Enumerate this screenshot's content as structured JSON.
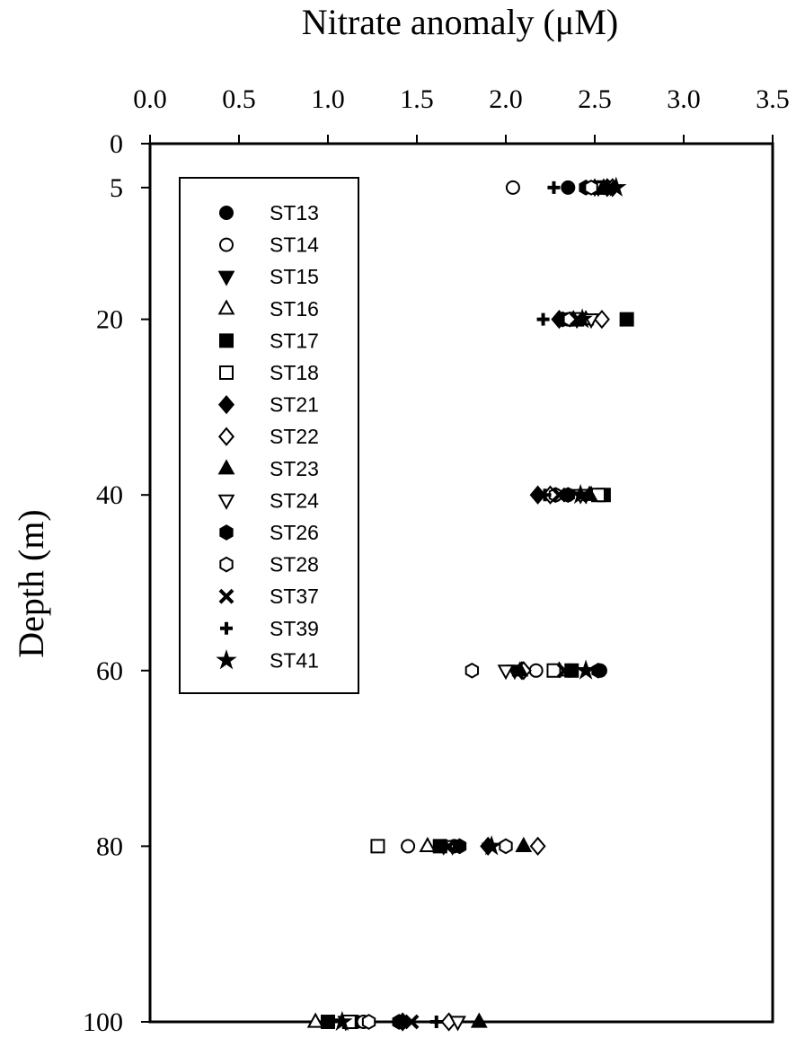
{
  "chart_data": {
    "type": "scatter",
    "title": "Nitrate anomaly (μM)",
    "y_label": "Depth (m)",
    "xlim": [
      0,
      3.5
    ],
    "xticks": [
      {
        "value": 0,
        "label": "0.0"
      },
      {
        "value": 0.5,
        "label": "0.5"
      },
      {
        "value": 1,
        "label": "1.0"
      },
      {
        "value": 1.5,
        "label": "1.5"
      },
      {
        "value": 2,
        "label": "2.0"
      },
      {
        "value": 2.5,
        "label": "2.5"
      },
      {
        "value": 3,
        "label": "3.0"
      },
      {
        "value": 3.5,
        "label": "3.5"
      }
    ],
    "ylim": [
      0,
      100
    ],
    "y_inverted": true,
    "yticks": [
      0,
      5,
      20,
      40,
      60,
      80,
      100
    ],
    "x_axis_position": "top",
    "grid": false,
    "legend": "upper left",
    "series": [
      {
        "name": "ST13",
        "color": "#000000",
        "marker": "circle",
        "filled": true,
        "x": [
          2.35,
          2.32,
          2.35,
          2.53,
          1.71,
          1.16
        ],
        "y": [
          5,
          20,
          40,
          60,
          80,
          100
        ]
      },
      {
        "name": "ST14",
        "color": "#000000",
        "marker": "circle",
        "filled": false,
        "x": [
          2.04,
          2.35,
          2.28,
          2.17,
          1.45,
          1.2
        ],
        "y": [
          5,
          20,
          40,
          60,
          80,
          100
        ]
      },
      {
        "name": "ST15",
        "color": "#000000",
        "marker": "triangle-down",
        "filled": true,
        "x": [
          2.52,
          2.4,
          2.45,
          2.05,
          1.65,
          1.1
        ],
        "y": [
          5,
          20,
          40,
          60,
          80,
          100
        ]
      },
      {
        "name": "ST16",
        "color": "#000000",
        "marker": "triangle-up",
        "filled": false,
        "x": [
          2.5,
          2.45,
          2.48,
          2.3,
          1.56,
          0.93
        ],
        "y": [
          5,
          20,
          40,
          60,
          80,
          100
        ]
      },
      {
        "name": "ST17",
        "color": "#000000",
        "marker": "square",
        "filled": true,
        "x": [
          2.55,
          2.68,
          2.55,
          2.37,
          1.63,
          1.0
        ],
        "y": [
          5,
          20,
          40,
          60,
          80,
          100
        ]
      },
      {
        "name": "ST18",
        "color": "#000000",
        "marker": "square",
        "filled": false,
        "x": [
          2.53,
          2.4,
          2.52,
          2.27,
          1.28,
          1.12
        ],
        "y": [
          5,
          20,
          40,
          60,
          80,
          100
        ]
      },
      {
        "name": "ST21",
        "color": "#000000",
        "marker": "diamond",
        "filled": true,
        "x": [
          2.57,
          2.3,
          2.18,
          2.09,
          1.9,
          1.42
        ],
        "y": [
          5,
          20,
          40,
          60,
          80,
          100
        ]
      },
      {
        "name": "ST22",
        "color": "#000000",
        "marker": "diamond",
        "filled": false,
        "x": [
          2.6,
          2.54,
          2.25,
          2.1,
          2.18,
          1.68
        ],
        "y": [
          5,
          20,
          40,
          60,
          80,
          100
        ]
      },
      {
        "name": "ST23",
        "color": "#000000",
        "marker": "triangle-up",
        "filled": true,
        "x": [
          2.55,
          2.38,
          2.47,
          2.08,
          2.1,
          1.85
        ],
        "y": [
          5,
          20,
          40,
          60,
          80,
          100
        ]
      },
      {
        "name": "ST24",
        "color": "#000000",
        "marker": "triangle-down",
        "filled": false,
        "x": [
          2.5,
          2.48,
          2.42,
          2.0,
          1.7,
          1.73
        ],
        "y": [
          5,
          20,
          40,
          60,
          80,
          100
        ]
      },
      {
        "name": "ST26",
        "color": "#000000",
        "marker": "hexagon",
        "filled": true,
        "x": [
          2.45,
          2.32,
          2.35,
          2.52,
          1.74,
          1.4
        ],
        "y": [
          5,
          20,
          40,
          60,
          80,
          100
        ]
      },
      {
        "name": "ST28",
        "color": "#000000",
        "marker": "hexagon",
        "filled": false,
        "x": [
          2.48,
          2.36,
          2.28,
          1.81,
          2.0,
          1.23
        ],
        "y": [
          5,
          20,
          40,
          60,
          80,
          100
        ]
      },
      {
        "name": "ST37",
        "color": "#000000",
        "marker": "x",
        "filled": true,
        "x": [
          2.58,
          2.4,
          2.3,
          2.33,
          1.68,
          1.47
        ],
        "y": [
          5,
          20,
          40,
          60,
          80,
          100
        ]
      },
      {
        "name": "ST39",
        "color": "#000000",
        "marker": "plus",
        "filled": true,
        "x": [
          2.27,
          2.21,
          2.22,
          2.35,
          1.66,
          1.61
        ],
        "y": [
          5,
          20,
          40,
          60,
          80,
          100
        ]
      },
      {
        "name": "ST41",
        "color": "#000000",
        "marker": "star",
        "filled": true,
        "x": [
          2.62,
          2.43,
          2.42,
          2.45,
          1.92,
          1.08
        ],
        "y": [
          5,
          20,
          40,
          60,
          80,
          100
        ]
      }
    ]
  }
}
